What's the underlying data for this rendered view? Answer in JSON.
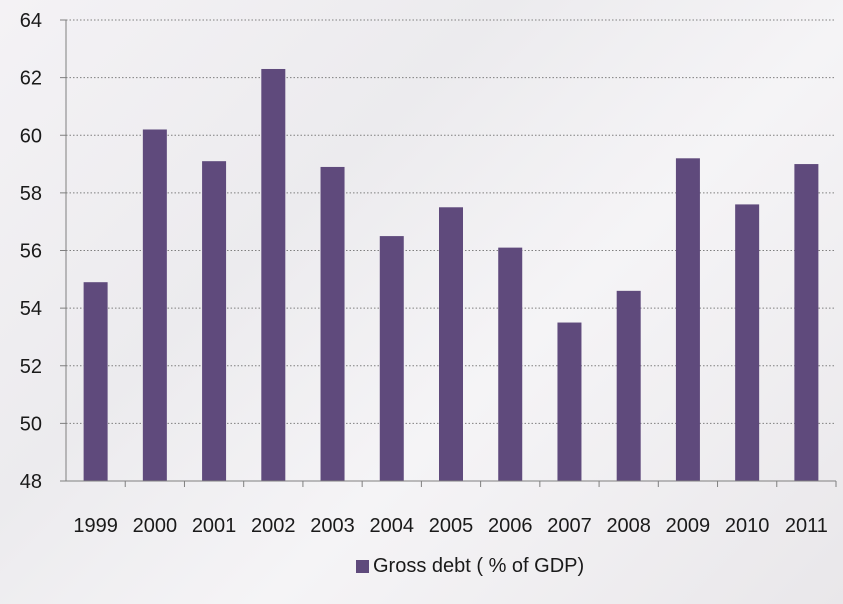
{
  "chart_data": {
    "type": "bar",
    "categories": [
      "1999",
      "2000",
      "2001",
      "2002",
      "2003",
      "2004",
      "2005",
      "2006",
      "2007",
      "2008",
      "2009",
      "2010",
      "2011"
    ],
    "series": [
      {
        "name": "Gross debt ( % of GDP)",
        "values": [
          54.9,
          60.2,
          59.1,
          62.3,
          58.9,
          56.5,
          57.5,
          56.1,
          53.5,
          54.6,
          59.2,
          57.6,
          59.0
        ],
        "color": "#5f4a7c"
      }
    ],
    "title": "",
    "xlabel": "",
    "ylabel": "",
    "ylim": [
      48,
      64
    ],
    "yticks": [
      48,
      50,
      52,
      54,
      56,
      58,
      60,
      62,
      64
    ],
    "grid": true,
    "legend_position": "bottom"
  }
}
